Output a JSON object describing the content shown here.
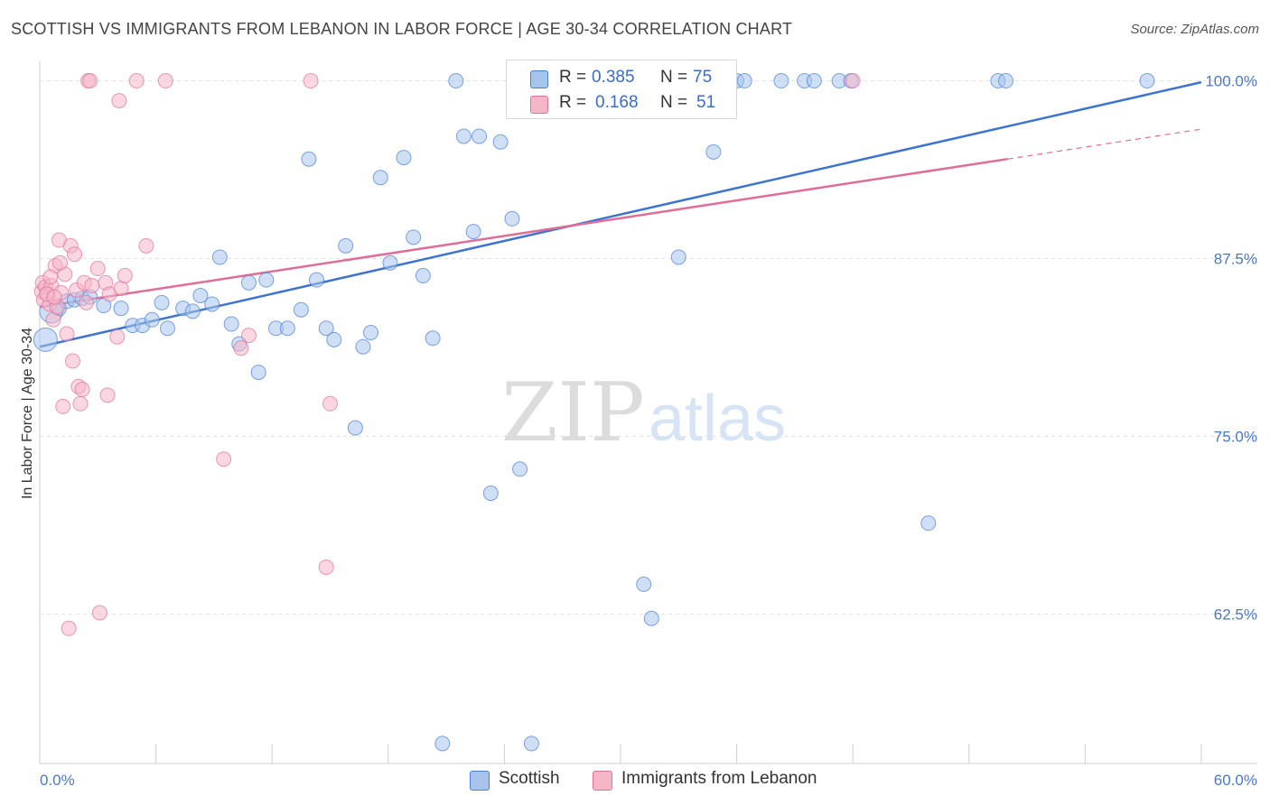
{
  "header": {
    "title": "SCOTTISH VS IMMIGRANTS FROM LEBANON IN LABOR FORCE | AGE 30-34 CORRELATION CHART",
    "source": "Source: ZipAtlas.com"
  },
  "watermark": {
    "zip": "ZIP",
    "atlas": "atlas"
  },
  "legend": {
    "rows": [
      {
        "r_label": "R = ",
        "r_value": "0.385",
        "n_label": "N = ",
        "n_value": "75",
        "color": "#a7c4ec"
      },
      {
        "r_label": "R = ",
        "r_value": "0.168",
        "n_label": "N = ",
        "n_value": "51",
        "color": "#f5b6c8"
      }
    ]
  },
  "bottom_legend": {
    "items": [
      {
        "label": "Scottish",
        "color": "#a7c4ec"
      },
      {
        "label": "Immigrants from Lebanon",
        "color": "#f5b6c8"
      }
    ]
  },
  "chart_data": {
    "type": "scatter",
    "xlabel": "",
    "ylabel": "In Labor Force | Age 30-34",
    "xlim": [
      0,
      60
    ],
    "ylim": [
      52,
      102
    ],
    "x_tick_labels": [
      "0.0%",
      "60.0%"
    ],
    "y_ticks": [
      62.5,
      75.0,
      87.5,
      100.0
    ],
    "y_tick_labels": [
      "62.5%",
      "75.0%",
      "87.5%",
      "100.0%"
    ],
    "grid": true,
    "legend_position": "top-center",
    "colors": {
      "scottish": "#4a7fd4",
      "lebanon": "#e0719a",
      "scottish_fill": "#a7c4ec",
      "lebanon_fill": "#f5b6c8"
    },
    "series": [
      {
        "name": "Scottish",
        "trend": {
          "x": [
            0,
            60
          ],
          "y": [
            81.3,
            99.9
          ]
        },
        "points": [
          [
            0.3,
            81.8
          ],
          [
            0.6,
            83.8
          ],
          [
            1.0,
            84.0
          ],
          [
            1.4,
            84.5
          ],
          [
            1.8,
            84.6
          ],
          [
            2.2,
            84.7
          ],
          [
            2.6,
            84.8
          ],
          [
            3.3,
            84.2
          ],
          [
            4.2,
            84.0
          ],
          [
            4.8,
            82.8
          ],
          [
            5.3,
            82.8
          ],
          [
            5.8,
            83.2
          ],
          [
            6.3,
            84.4
          ],
          [
            6.6,
            82.6
          ],
          [
            7.4,
            84.0
          ],
          [
            7.9,
            83.8
          ],
          [
            8.3,
            84.9
          ],
          [
            8.9,
            84.3
          ],
          [
            9.3,
            87.6
          ],
          [
            9.9,
            82.9
          ],
          [
            10.3,
            81.5
          ],
          [
            10.8,
            85.8
          ],
          [
            11.3,
            79.5
          ],
          [
            11.7,
            86.0
          ],
          [
            12.2,
            82.6
          ],
          [
            12.8,
            82.6
          ],
          [
            13.5,
            83.9
          ],
          [
            13.9,
            94.5
          ],
          [
            14.3,
            86.0
          ],
          [
            14.8,
            82.6
          ],
          [
            15.2,
            81.8
          ],
          [
            15.8,
            88.4
          ],
          [
            16.3,
            75.6
          ],
          [
            16.7,
            81.3
          ],
          [
            17.1,
            82.3
          ],
          [
            17.6,
            93.2
          ],
          [
            18.1,
            87.2
          ],
          [
            18.8,
            94.6
          ],
          [
            19.3,
            89.0
          ],
          [
            19.8,
            86.3
          ],
          [
            20.3,
            81.9
          ],
          [
            20.8,
            53.4
          ],
          [
            21.5,
            100.0
          ],
          [
            21.9,
            96.1
          ],
          [
            22.4,
            89.4
          ],
          [
            22.7,
            96.1
          ],
          [
            23.3,
            71.0
          ],
          [
            23.8,
            95.7
          ],
          [
            24.4,
            90.3
          ],
          [
            24.8,
            72.7
          ],
          [
            25.4,
            53.4
          ],
          [
            25.7,
            100.0
          ],
          [
            26.2,
            100.0
          ],
          [
            26.8,
            100.0
          ],
          [
            27.2,
            100.0
          ],
          [
            28.2,
            100.0
          ],
          [
            29.2,
            100.0
          ],
          [
            30.2,
            100.0
          ],
          [
            31.2,
            64.6
          ],
          [
            31.6,
            62.2
          ],
          [
            32.2,
            100.0
          ],
          [
            33.0,
            87.6
          ],
          [
            34.2,
            100.0
          ],
          [
            34.8,
            95.0
          ],
          [
            36.0,
            100.0
          ],
          [
            36.4,
            100.0
          ],
          [
            38.3,
            100.0
          ],
          [
            39.5,
            100.0
          ],
          [
            40.0,
            100.0
          ],
          [
            41.3,
            100.0
          ],
          [
            41.9,
            100.0
          ],
          [
            45.9,
            68.9
          ],
          [
            49.5,
            100.0
          ],
          [
            49.9,
            100.0
          ],
          [
            57.2,
            100.0
          ]
        ]
      },
      {
        "name": "Immigrants from Lebanon",
        "trend": {
          "x": [
            0,
            50
          ],
          "y": [
            84.1,
            94.5
          ]
        },
        "trend_dashed": {
          "x": [
            50,
            60
          ],
          "y": [
            94.5,
            96.6
          ]
        },
        "points": [
          [
            0.1,
            85.2
          ],
          [
            0.15,
            85.8
          ],
          [
            0.2,
            84.6
          ],
          [
            0.3,
            85.5
          ],
          [
            0.4,
            85.0
          ],
          [
            0.5,
            84.3
          ],
          [
            0.6,
            85.6
          ],
          [
            0.7,
            83.2
          ],
          [
            0.8,
            87.0
          ],
          [
            0.9,
            84.1
          ],
          [
            1.0,
            88.8
          ],
          [
            1.1,
            85.1
          ],
          [
            1.2,
            77.1
          ],
          [
            1.3,
            86.4
          ],
          [
            1.4,
            82.2
          ],
          [
            1.5,
            61.5
          ],
          [
            1.6,
            88.4
          ],
          [
            1.7,
            80.3
          ],
          [
            1.8,
            87.8
          ],
          [
            1.9,
            85.3
          ],
          [
            2.0,
            78.5
          ],
          [
            2.1,
            77.3
          ],
          [
            2.2,
            78.3
          ],
          [
            2.3,
            85.8
          ],
          [
            2.4,
            84.4
          ],
          [
            2.5,
            100.0
          ],
          [
            2.6,
            100.0
          ],
          [
            2.7,
            85.6
          ],
          [
            3.0,
            86.8
          ],
          [
            3.1,
            62.6
          ],
          [
            3.4,
            85.8
          ],
          [
            3.5,
            77.9
          ],
          [
            3.6,
            85.0
          ],
          [
            4.0,
            82.0
          ],
          [
            4.1,
            98.6
          ],
          [
            4.2,
            85.4
          ],
          [
            4.4,
            86.3
          ],
          [
            5.0,
            100.0
          ],
          [
            5.5,
            88.4
          ],
          [
            6.5,
            100.0
          ],
          [
            9.5,
            73.4
          ],
          [
            10.4,
            81.2
          ],
          [
            10.8,
            82.1
          ],
          [
            14.0,
            100.0
          ],
          [
            14.8,
            65.8
          ],
          [
            15.0,
            77.3
          ],
          [
            42.0,
            100.0
          ],
          [
            0.35,
            85.0
          ],
          [
            0.55,
            86.2
          ],
          [
            0.75,
            84.8
          ],
          [
            1.05,
            87.2
          ]
        ]
      }
    ]
  }
}
